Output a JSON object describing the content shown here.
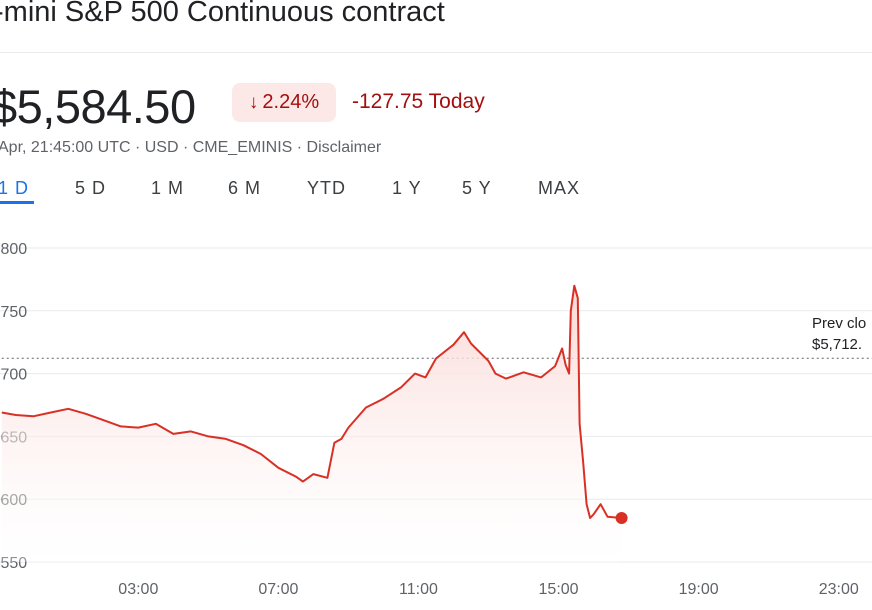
{
  "header": {
    "title": "-mini S&P 500 Continuous contract",
    "price": "$5,584.50",
    "change_pct": "2.24%",
    "change_arrow": "↓",
    "change_abs": "-127.75 Today",
    "meta": "Apr, 21:45:00 UTC · USD · CME_EMINIS · Disclaimer"
  },
  "tabs": [
    {
      "label": "1 D",
      "active": true
    },
    {
      "label": "5 D"
    },
    {
      "label": "1 M"
    },
    {
      "label": "6 M"
    },
    {
      "label": "YTD"
    },
    {
      "label": "1 Y"
    },
    {
      "label": "5 Y"
    },
    {
      "label": "MAX"
    }
  ],
  "colors": {
    "line": "#d93025",
    "fill_top": "#f9d6d3",
    "negative_text": "#a50e0e",
    "badge_bg": "#fce8e6",
    "active_tab": "#1a73e8"
  },
  "chart_data": {
    "type": "line",
    "ytick_labels": [
      ",800",
      ",750",
      ",700",
      ",650",
      ",600",
      ",550"
    ],
    "yticks": [
      5800,
      5750,
      5700,
      5650,
      5600,
      5550
    ],
    "ylim": [
      5550,
      5800
    ],
    "xtick_labels": [
      "03:00",
      "07:00",
      "11:00",
      "15:00",
      "19:00",
      "23:00"
    ],
    "xticks": [
      3,
      7,
      11,
      15,
      19,
      23
    ],
    "xlim": [
      -0.95,
      23.95
    ],
    "grid": true,
    "prev_close": {
      "label_line1": "Prev clo",
      "label_line2": "$5,712.",
      "value": 5712.25
    },
    "series": [
      {
        "x": [
          -0.9,
          -0.5,
          0,
          0.5,
          1,
          1.5,
          2,
          2.5,
          3,
          3.5,
          4,
          4.5,
          5,
          5.5,
          6,
          6.5,
          7,
          7.5,
          7.7,
          8,
          8.4,
          8.6,
          8.8,
          9,
          9.5,
          10,
          10.5,
          10.9,
          11.2,
          11.5,
          12,
          12.3,
          12.5,
          13,
          13.2,
          13.5,
          14,
          14.5,
          14.9,
          15.1,
          15.2,
          15.3,
          15.35,
          15.45,
          15.55,
          15.6,
          15.7,
          15.8,
          15.9,
          16,
          16.2,
          16.4,
          16.8
        ],
        "values": [
          5669,
          5667,
          5666,
          5669,
          5672,
          5668,
          5663,
          5658,
          5657,
          5660,
          5652,
          5654,
          5650,
          5648,
          5643,
          5636,
          5625,
          5618,
          5614,
          5620,
          5617,
          5645,
          5648,
          5657,
          5673,
          5680,
          5689,
          5700,
          5697,
          5712,
          5723,
          5733,
          5724,
          5710,
          5700,
          5696,
          5701,
          5697,
          5706,
          5720,
          5707,
          5700,
          5750,
          5770,
          5760,
          5660,
          5630,
          5596,
          5585,
          5588,
          5596,
          5586,
          5585
        ]
      }
    ],
    "last_point": {
      "x": 16.8,
      "value": 5585
    }
  }
}
